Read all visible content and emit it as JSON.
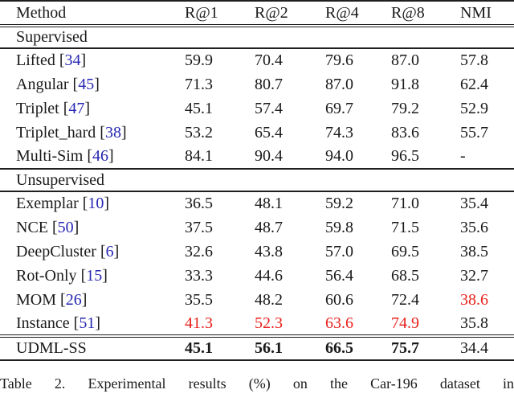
{
  "header": {
    "columns": [
      "Method",
      "R@1",
      "R@2",
      "R@4",
      "R@8",
      "NMI"
    ]
  },
  "table": {
    "rows": [
      {
        "type": "section",
        "label": "Supervised",
        "rule": "single"
      },
      {
        "type": "data",
        "method": "Lifted",
        "cite": "34",
        "values": [
          {
            "t": "59.9"
          },
          {
            "t": "70.4"
          },
          {
            "t": "79.6"
          },
          {
            "t": "87.0"
          },
          {
            "t": "57.8"
          }
        ]
      },
      {
        "type": "data",
        "method": "Angular",
        "cite": "45",
        "values": [
          {
            "t": "71.3"
          },
          {
            "t": "80.7"
          },
          {
            "t": "87.0"
          },
          {
            "t": "91.8"
          },
          {
            "t": "62.4"
          }
        ]
      },
      {
        "type": "data",
        "method": "Triplet",
        "cite": "47",
        "values": [
          {
            "t": "45.1"
          },
          {
            "t": "57.4"
          },
          {
            "t": "69.7"
          },
          {
            "t": "79.2"
          },
          {
            "t": "52.9"
          }
        ]
      },
      {
        "type": "data",
        "method": "Triplet_hard",
        "cite": "38",
        "values": [
          {
            "t": "53.2"
          },
          {
            "t": "65.4"
          },
          {
            "t": "74.3"
          },
          {
            "t": "83.6"
          },
          {
            "t": "55.7"
          }
        ]
      },
      {
        "type": "data",
        "method": "Multi-Sim",
        "cite": "46",
        "rule": "single",
        "values": [
          {
            "t": "84.1"
          },
          {
            "t": "90.4"
          },
          {
            "t": "94.0"
          },
          {
            "t": "96.5"
          },
          {
            "t": "-"
          }
        ]
      },
      {
        "type": "section",
        "label": "Unsupervised",
        "rule": "single"
      },
      {
        "type": "data",
        "method": "Exemplar",
        "cite": "10",
        "values": [
          {
            "t": "36.5"
          },
          {
            "t": "48.1"
          },
          {
            "t": "59.2"
          },
          {
            "t": "71.0"
          },
          {
            "t": "35.4"
          }
        ]
      },
      {
        "type": "data",
        "method": "NCE",
        "cite": "50",
        "values": [
          {
            "t": "37.5"
          },
          {
            "t": "48.7"
          },
          {
            "t": "59.8"
          },
          {
            "t": "71.5"
          },
          {
            "t": "35.6"
          }
        ]
      },
      {
        "type": "data",
        "method": "DeepCluster",
        "cite": "6",
        "values": [
          {
            "t": "32.6"
          },
          {
            "t": "43.8"
          },
          {
            "t": "57.0"
          },
          {
            "t": "69.5"
          },
          {
            "t": "38.5"
          }
        ]
      },
      {
        "type": "data",
        "method": "Rot-Only",
        "cite": "15",
        "values": [
          {
            "t": "33.3"
          },
          {
            "t": "44.6"
          },
          {
            "t": "56.4"
          },
          {
            "t": "68.5"
          },
          {
            "t": "32.7"
          }
        ]
      },
      {
        "type": "data",
        "method": "MOM",
        "cite": "26",
        "values": [
          {
            "t": "35.5"
          },
          {
            "t": "48.2"
          },
          {
            "t": "60.6"
          },
          {
            "t": "72.4"
          },
          {
            "t": "38.6",
            "s": "red"
          }
        ]
      },
      {
        "type": "data",
        "method": "Instance",
        "cite": "51",
        "rule": "double",
        "values": [
          {
            "t": "41.3",
            "s": "red"
          },
          {
            "t": "52.3",
            "s": "red"
          },
          {
            "t": "63.6",
            "s": "red"
          },
          {
            "t": "74.9",
            "s": "red"
          },
          {
            "t": "35.8"
          }
        ]
      },
      {
        "type": "data",
        "method": "UDML-SS",
        "cite": null,
        "rule": "bottom",
        "values": [
          {
            "t": "45.1",
            "s": "bold"
          },
          {
            "t": "56.1",
            "s": "bold"
          },
          {
            "t": "66.5",
            "s": "bold"
          },
          {
            "t": "75.7",
            "s": "bold"
          },
          {
            "t": "34.4"
          }
        ]
      }
    ]
  },
  "caption": "Table 2. Experimental results (%) on the Car-196 dataset in",
  "colors": {
    "citation_blue": "#2626b2",
    "highlight_red": "#e9211c",
    "text": "#1a1a1a",
    "rule": "#1f1f1f"
  }
}
